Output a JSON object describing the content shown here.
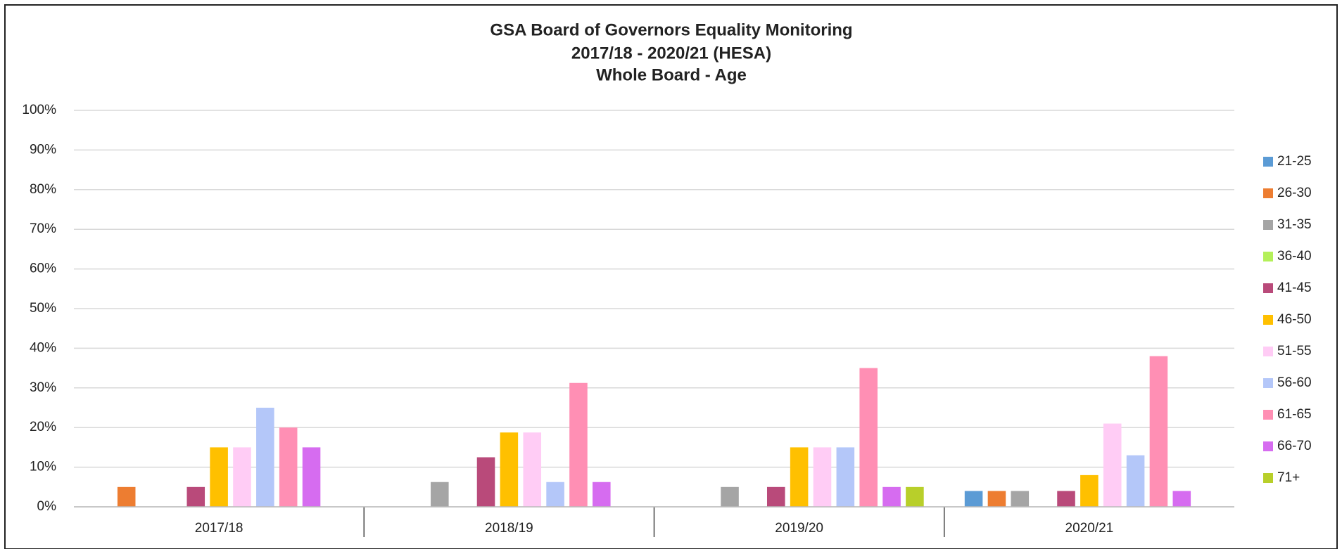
{
  "chart_data": {
    "type": "bar",
    "title": [
      "GSA Board of Governors Equality Monitoring",
      "2017/18 - 2020/21 (HESA)",
      "Whole Board - Age"
    ],
    "categories": [
      "2017/18",
      "2018/19",
      "2019/20",
      "2020/21"
    ],
    "series": [
      {
        "name": "21-25",
        "color": "#5b9bd5",
        "values": [
          0,
          0,
          0,
          4
        ]
      },
      {
        "name": "26-30",
        "color": "#ed7d31",
        "values": [
          5,
          0,
          0,
          4
        ]
      },
      {
        "name": "31-35",
        "color": "#a5a5a5",
        "values": [
          0,
          6.25,
          5,
          4
        ]
      },
      {
        "name": "36-40",
        "color": "#b4f05a",
        "values": [
          0,
          0,
          0,
          0
        ]
      },
      {
        "name": "41-45",
        "color": "#b94a7a",
        "values": [
          5,
          12.5,
          5,
          4
        ]
      },
      {
        "name": "46-50",
        "color": "#ffc000",
        "values": [
          15,
          18.75,
          15,
          8
        ]
      },
      {
        "name": "51-55",
        "color": "#ffccf5",
        "values": [
          15,
          18.75,
          15,
          21
        ]
      },
      {
        "name": "56-60",
        "color": "#b4c7f9",
        "values": [
          25,
          6.25,
          15,
          13
        ]
      },
      {
        "name": "61-65",
        "color": "#ff8fb4",
        "values": [
          20,
          31.25,
          35,
          38
        ]
      },
      {
        "name": "66-70",
        "color": "#d66cf0",
        "values": [
          15,
          6.25,
          5,
          4
        ]
      },
      {
        "name": "71+",
        "color": "#b8cf2a",
        "values": [
          0,
          0,
          5,
          0
        ]
      }
    ],
    "ylim": [
      0,
      100
    ],
    "yticks": [
      {
        "value": 0,
        "label": "0%"
      },
      {
        "value": 10,
        "label": "10%"
      },
      {
        "value": 20,
        "label": "20%"
      },
      {
        "value": 30,
        "label": "30%"
      },
      {
        "value": 40,
        "label": "40%"
      },
      {
        "value": 50,
        "label": "50%"
      },
      {
        "value": 60,
        "label": "60%"
      },
      {
        "value": 70,
        "label": "70%"
      },
      {
        "value": 80,
        "label": "80%"
      },
      {
        "value": 90,
        "label": "90%"
      },
      {
        "value": 100,
        "label": "100%"
      }
    ],
    "grid": true,
    "legend": "right"
  }
}
